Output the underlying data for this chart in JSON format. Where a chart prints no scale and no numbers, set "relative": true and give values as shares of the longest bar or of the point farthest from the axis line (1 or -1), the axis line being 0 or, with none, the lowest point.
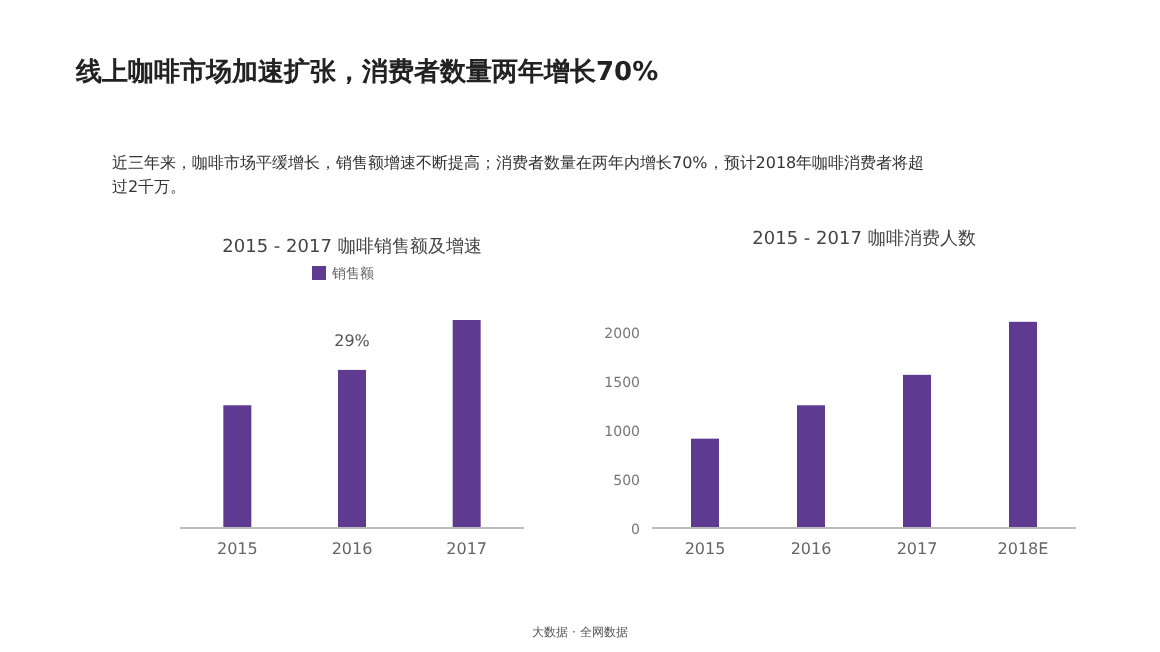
{
  "chart_data": [
    {
      "type": "bar",
      "title": "2015 - 2017 咖啡销售额及增速",
      "categories": [
        "2015",
        "2016",
        "2017"
      ],
      "relative": true,
      "series": [
        {
          "name": "销售额",
          "color": "#5e3a91",
          "values": [
            0.59,
            0.76,
            1
          ]
        }
      ],
      "legend": "top",
      "annotations": [
        "线上咖啡市场加速扩张，消费者数量两年增长70%",
        "近三年来，咖啡市场平缓增长，销售额增速不断提高；消费者数量在两年内增长70%，预计2018年咖啡消费者将超过2千万。",
        "29%",
        "大数据 · 全网数据"
      ]
    },
    {
      "type": "bar",
      "title": "2015 - 2017 咖啡消费人数",
      "categories": [
        "2015",
        "2016",
        "2017",
        "2018E"
      ],
      "series": [
        {
          "color": "#5e3a91",
          "values": [
            910,
            1250,
            1560,
            2100
          ]
        }
      ],
      "ylim": [
        0,
        2200
      ],
      "yticks": [
        0,
        500,
        1000,
        1500,
        2000
      ]
    }
  ]
}
